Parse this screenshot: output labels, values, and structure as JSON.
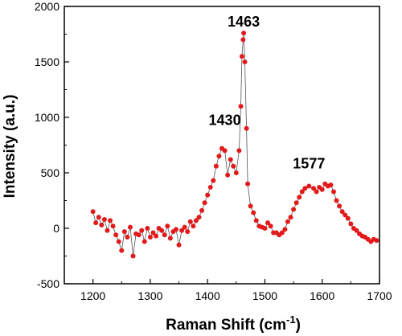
{
  "chart_data": {
    "type": "scatter",
    "title": "",
    "xlabel": "Raman Shift (cm",
    "xlabel_superscript": "-1",
    "xlabel_suffix": ")",
    "ylabel": "Intensity (a.u.)",
    "xlim": [
      1150,
      1700
    ],
    "ylim": [
      -500,
      2000
    ],
    "xticks": [
      1200,
      1300,
      1400,
      1500,
      1600,
      1700
    ],
    "yticks": [
      -500,
      0,
      500,
      1000,
      1500,
      2000
    ],
    "grid": false,
    "legend": "none",
    "marker_color": "#e31a1c",
    "line_color": "#555555",
    "annotations": [
      {
        "text": "1430",
        "x": 1430,
        "y": 930
      },
      {
        "text": "1463",
        "x": 1463,
        "y": 1820
      },
      {
        "text": "1577",
        "x": 1577,
        "y": 540
      }
    ],
    "series": [
      {
        "x": [
          1200,
          1205,
          1210,
          1215,
          1220,
          1225,
          1230,
          1235,
          1240,
          1245,
          1250,
          1255,
          1260,
          1265,
          1270,
          1275,
          1280,
          1285,
          1290,
          1295,
          1300,
          1305,
          1310,
          1315,
          1320,
          1325,
          1330,
          1335,
          1340,
          1345,
          1350,
          1355,
          1360,
          1365,
          1370,
          1375,
          1380,
          1385,
          1390,
          1395,
          1400,
          1405,
          1410,
          1415,
          1420,
          1425,
          1430,
          1435,
          1440,
          1445,
          1450,
          1455,
          1458,
          1460,
          1462,
          1463,
          1465,
          1468,
          1470,
          1475,
          1480,
          1485,
          1490,
          1495,
          1500,
          1505,
          1510,
          1515,
          1520,
          1525,
          1530,
          1535,
          1540,
          1545,
          1550,
          1555,
          1560,
          1565,
          1570,
          1577,
          1585,
          1590,
          1595,
          1600,
          1605,
          1610,
          1615,
          1620,
          1625,
          1630,
          1635,
          1640,
          1645,
          1650,
          1655,
          1660,
          1665,
          1670,
          1675,
          1680,
          1685,
          1690,
          1695
        ],
        "y": [
          150,
          50,
          100,
          30,
          80,
          -20,
          70,
          20,
          -60,
          -120,
          -200,
          -30,
          -80,
          10,
          -250,
          -50,
          -60,
          -20,
          -120,
          0,
          -80,
          -40,
          -70,
          0,
          -20,
          -60,
          20,
          -90,
          -30,
          -10,
          -150,
          -20,
          10,
          -30,
          60,
          20,
          70,
          100,
          160,
          230,
          300,
          370,
          430,
          560,
          650,
          720,
          700,
          480,
          620,
          560,
          500,
          700,
          1100,
          1550,
          1700,
          1760,
          1500,
          900,
          400,
          200,
          140,
          70,
          20,
          10,
          0,
          50,
          20,
          -40,
          -40,
          -60,
          -40,
          -10,
          60,
          100,
          170,
          230,
          280,
          330,
          360,
          380,
          360,
          330,
          370,
          350,
          400,
          380,
          390,
          330,
          250,
          200,
          150,
          120,
          90,
          40,
          0,
          -20,
          -50,
          -70,
          -80,
          -100,
          -120,
          -100,
          -110
        ]
      }
    ]
  }
}
